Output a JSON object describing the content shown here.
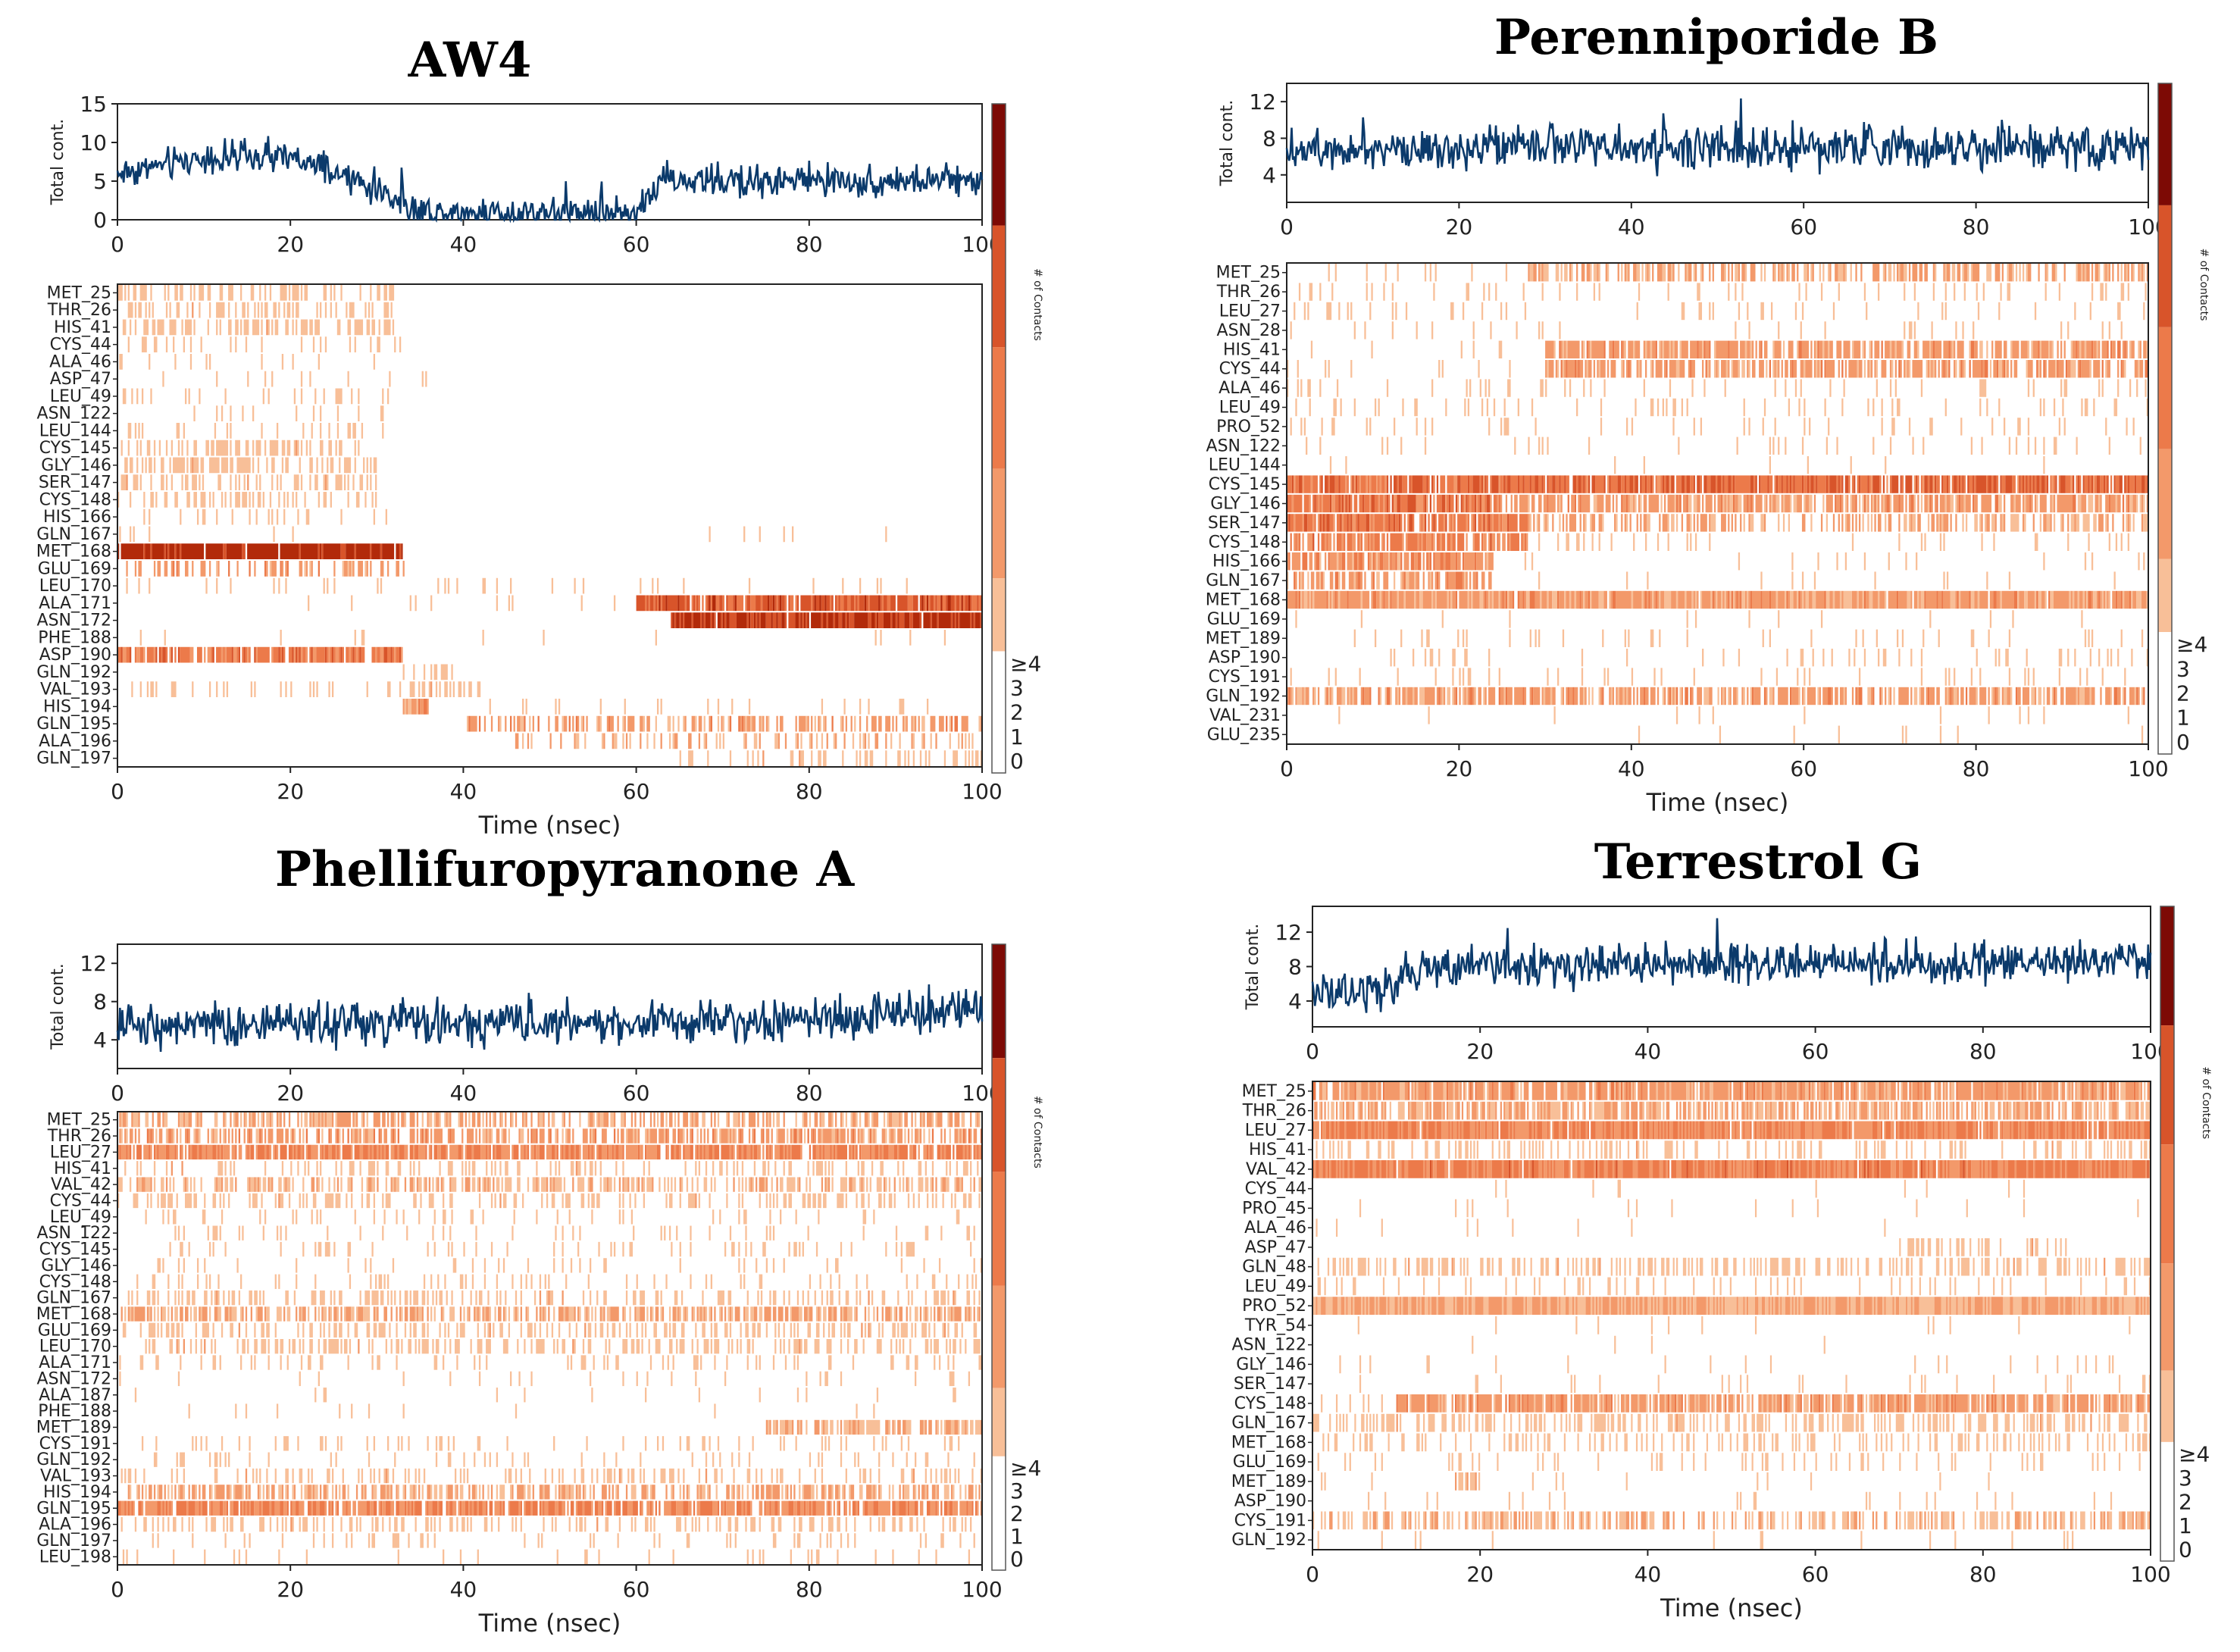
{
  "figure": {
    "time_label": "Time (nsec)",
    "total_label": "Total cont.",
    "colorbar_label": "# of Contacts",
    "colorbar_ticks": [
      "0",
      "1",
      "2",
      "3",
      "≥4"
    ]
  },
  "chart_data": [
    {
      "type": "heatmap",
      "title": "AW4",
      "xlabel": "Time (nsec)",
      "xlim": [
        0,
        100
      ],
      "xticks": [
        "0",
        "20",
        "40",
        "60",
        "80",
        "100"
      ],
      "total_contacts": {
        "ylabel": "Total cont.",
        "yticks": [
          "0",
          "5",
          "10",
          "15"
        ],
        "ylim": [
          0,
          15
        ],
        "segments": [
          [
            0,
            6
          ],
          [
            10,
            8
          ],
          [
            20,
            8
          ],
          [
            30,
            4
          ],
          [
            35,
            1
          ],
          [
            40,
            1
          ],
          [
            50,
            1
          ],
          [
            60,
            1
          ],
          [
            63,
            5
          ],
          [
            70,
            5
          ],
          [
            80,
            5
          ],
          [
            90,
            5
          ],
          [
            100,
            5
          ]
        ],
        "noise": 1.6
      },
      "residues": [
        "MET_25",
        "THR_26",
        "HIS_41",
        "CYS_44",
        "ALA_46",
        "ASP_47",
        "LEU_49",
        "ASN_122",
        "LEU_144",
        "CYS_145",
        "GLY_146",
        "SER_147",
        "CYS_148",
        "HIS_166",
        "GLN_167",
        "MET_168",
        "GLU_169",
        "LEU_170",
        "ALA_171",
        "ASN_172",
        "PHE_188",
        "ASP_190",
        "GLN_192",
        "VAL_193",
        "HIS_194",
        "GLN_195",
        "ALA_196",
        "GLN_197"
      ],
      "bands": [
        [
          [
            0,
            32,
            0.35,
            0.6
          ]
        ],
        [
          [
            0,
            32,
            0.4,
            0.6
          ]
        ],
        [
          [
            0,
            32,
            0.5,
            0.6
          ]
        ],
        [
          [
            0,
            33,
            0.15,
            0.5
          ]
        ],
        [
          [
            0,
            32,
            0.1,
            0.5
          ]
        ],
        [
          [
            0,
            40,
            0.08,
            0.5
          ]
        ],
        [
          [
            0,
            33,
            0.15,
            0.5
          ]
        ],
        [
          [
            0,
            35,
            0.06,
            0.5
          ]
        ],
        [
          [
            0,
            32,
            0.2,
            0.5
          ]
        ],
        [
          [
            0,
            30,
            0.45,
            0.6
          ]
        ],
        [
          [
            0,
            30,
            0.5,
            0.6
          ]
        ],
        [
          [
            0,
            30,
            0.4,
            0.6
          ]
        ],
        [
          [
            0,
            30,
            0.3,
            0.5
          ]
        ],
        [
          [
            0,
            32,
            0.1,
            0.5
          ]
        ],
        [
          [
            0,
            90,
            0.03,
            0.5
          ]
        ],
        [
          [
            0,
            33,
            0.95,
            2.6
          ]
        ],
        [
          [
            0,
            35,
            0.35,
            0.9
          ]
        ],
        [
          [
            0,
            55,
            0.1,
            0.5
          ],
          [
            55,
            100,
            0.04,
            0.5
          ]
        ],
        [
          [
            60,
            100,
            0.95,
            1.7
          ],
          [
            20,
            60,
            0.05,
            0.5
          ]
        ],
        [
          [
            64,
            100,
            0.95,
            2.3
          ]
        ],
        [
          [
            0,
            100,
            0.02,
            0.4
          ]
        ],
        [
          [
            0,
            33,
            0.85,
            1.3
          ]
        ],
        [
          [
            33,
            40,
            0.3,
            0.6
          ]
        ],
        [
          [
            0,
            33,
            0.1,
            0.5
          ],
          [
            33,
            42,
            0.4,
            0.6
          ]
        ],
        [
          [
            33,
            36,
            0.9,
            0.9
          ],
          [
            36,
            100,
            0.08,
            0.5
          ]
        ],
        [
          [
            40,
            100,
            0.5,
            0.9
          ]
        ],
        [
          [
            45,
            100,
            0.3,
            0.7
          ]
        ],
        [
          [
            65,
            100,
            0.3,
            0.6
          ]
        ]
      ]
    },
    {
      "type": "heatmap",
      "title": "Perenniporide B",
      "xlabel": "Time (nsec)",
      "xlim": [
        0,
        100
      ],
      "xticks": [
        "0",
        "20",
        "40",
        "60",
        "80",
        "100"
      ],
      "total_contacts": {
        "ylabel": "Total cont.",
        "yticks": [
          "4",
          "8",
          "12"
        ],
        "ylim": [
          1,
          14
        ],
        "segments": [
          [
            0,
            7
          ],
          [
            100,
            7
          ]
        ],
        "noise": 1.8
      },
      "residues": [
        "MET_25",
        "THR_26",
        "LEU_27",
        "ASN_28",
        "HIS_41",
        "CYS_44",
        "ALA_46",
        "LEU_49",
        "PRO_52",
        "ASN_122",
        "LEU_144",
        "CYS_145",
        "GLY_146",
        "SER_147",
        "CYS_148",
        "HIS_166",
        "GLN_167",
        "MET_168",
        "GLU_169",
        "MET_189",
        "ASP_190",
        "CYS_191",
        "GLN_192",
        "VAL_231",
        "GLU_235"
      ],
      "bands": [
        [
          [
            0,
            28,
            0.05,
            0.5
          ],
          [
            28,
            100,
            0.55,
            0.8
          ]
        ],
        [
          [
            0,
            100,
            0.12,
            0.5
          ]
        ],
        [
          [
            0,
            100,
            0.1,
            0.5
          ]
        ],
        [
          [
            0,
            100,
            0.06,
            0.5
          ]
        ],
        [
          [
            0,
            30,
            0.03,
            0.5
          ],
          [
            30,
            100,
            0.75,
            0.9
          ]
        ],
        [
          [
            0,
            30,
            0.06,
            0.5
          ],
          [
            30,
            100,
            0.7,
            0.9
          ]
        ],
        [
          [
            0,
            100,
            0.12,
            0.5
          ]
        ],
        [
          [
            0,
            100,
            0.12,
            0.5
          ]
        ],
        [
          [
            0,
            100,
            0.08,
            0.5
          ]
        ],
        [
          [
            0,
            100,
            0.06,
            0.5
          ]
        ],
        [
          [
            0,
            100,
            0.03,
            0.5
          ]
        ],
        [
          [
            0,
            25,
            0.9,
            1.4
          ],
          [
            25,
            100,
            0.9,
            1.5
          ]
        ],
        [
          [
            0,
            25,
            0.9,
            1.3
          ],
          [
            25,
            100,
            0.75,
            0.9
          ]
        ],
        [
          [
            0,
            28,
            0.85,
            1.3
          ],
          [
            28,
            100,
            0.5,
            0.8
          ]
        ],
        [
          [
            0,
            28,
            0.8,
            1.2
          ],
          [
            28,
            100,
            0.1,
            0.5
          ]
        ],
        [
          [
            0,
            24,
            0.85,
            1.0
          ],
          [
            24,
            100,
            0.04,
            0.5
          ]
        ],
        [
          [
            0,
            24,
            0.7,
            0.9
          ],
          [
            24,
            100,
            0.03,
            0.5
          ]
        ],
        [
          [
            0,
            100,
            0.98,
            0.9
          ]
        ],
        [
          [
            0,
            100,
            0.02,
            0.4
          ]
        ],
        [
          [
            0,
            100,
            0.08,
            0.5
          ]
        ],
        [
          [
            0,
            100,
            0.12,
            0.5
          ]
        ],
        [
          [
            0,
            100,
            0.1,
            0.5
          ]
        ],
        [
          [
            0,
            100,
            0.75,
            0.9
          ]
        ],
        [
          [
            0,
            100,
            0.03,
            0.5
          ]
        ],
        [
          [
            0,
            100,
            0.02,
            0.5
          ]
        ]
      ]
    },
    {
      "type": "heatmap",
      "title": "Phellifuropyranone A",
      "xlabel": "Time (nsec)",
      "xlim": [
        0,
        100
      ],
      "xticks": [
        "0",
        "20",
        "40",
        "60",
        "80",
        "100"
      ],
      "total_contacts": {
        "ylabel": "Total cont.",
        "yticks": [
          "4",
          "8",
          "12"
        ],
        "ylim": [
          1,
          14
        ],
        "segments": [
          [
            0,
            5.5
          ],
          [
            80,
            6
          ],
          [
            100,
            7.5
          ]
        ],
        "noise": 1.7
      },
      "residues": [
        "MET_25",
        "THR_26",
        "LEU_27",
        "HIS_41",
        "VAL_42",
        "CYS_44",
        "LEU_49",
        "ASN_122",
        "CYS_145",
        "GLY_146",
        "CYS_148",
        "GLN_167",
        "MET_168",
        "GLU_169",
        "LEU_170",
        "ALA_171",
        "ASN_172",
        "ALA_187",
        "PHE_188",
        "MET_189",
        "CYS_191",
        "GLN_192",
        "VAL_193",
        "HIS_194",
        "GLN_195",
        "ALA_196",
        "GLN_197",
        "LEU_198"
      ],
      "bands": [
        [
          [
            0,
            100,
            0.55,
            0.8
          ]
        ],
        [
          [
            0,
            100,
            0.6,
            0.9
          ]
        ],
        [
          [
            0,
            100,
            0.85,
            1.1
          ]
        ],
        [
          [
            0,
            100,
            0.25,
            0.6
          ]
        ],
        [
          [
            0,
            100,
            0.5,
            0.7
          ]
        ],
        [
          [
            0,
            100,
            0.3,
            0.6
          ]
        ],
        [
          [
            0,
            100,
            0.12,
            0.5
          ]
        ],
        [
          [
            0,
            100,
            0.1,
            0.5
          ]
        ],
        [
          [
            0,
            100,
            0.12,
            0.5
          ]
        ],
        [
          [
            0,
            100,
            0.1,
            0.5
          ]
        ],
        [
          [
            0,
            100,
            0.12,
            0.5
          ]
        ],
        [
          [
            0,
            100,
            0.3,
            0.6
          ]
        ],
        [
          [
            0,
            100,
            0.65,
            0.8
          ]
        ],
        [
          [
            0,
            100,
            0.35,
            0.6
          ]
        ],
        [
          [
            0,
            100,
            0.35,
            0.6
          ]
        ],
        [
          [
            0,
            100,
            0.12,
            0.5
          ]
        ],
        [
          [
            0,
            100,
            0.06,
            0.5
          ]
        ],
        [
          [
            0,
            100,
            0.03,
            0.5
          ]
        ],
        [
          [
            0,
            100,
            0.03,
            0.5
          ]
        ],
        [
          [
            75,
            100,
            0.7,
            0.7
          ]
        ],
        [
          [
            0,
            100,
            0.15,
            0.5
          ]
        ],
        [
          [
            0,
            100,
            0.1,
            0.5
          ]
        ],
        [
          [
            0,
            100,
            0.25,
            0.6
          ]
        ],
        [
          [
            0,
            100,
            0.55,
            0.8
          ]
        ],
        [
          [
            0,
            100,
            0.85,
            1.1
          ]
        ],
        [
          [
            0,
            100,
            0.3,
            0.6
          ]
        ],
        [
          [
            0,
            100,
            0.12,
            0.5
          ]
        ],
        [
          [
            0,
            100,
            0.05,
            0.5
          ]
        ]
      ]
    },
    {
      "type": "heatmap",
      "title": "Terrestrol G",
      "xlabel": "Time (nsec)",
      "xlim": [
        0,
        100
      ],
      "xticks": [
        "0",
        "20",
        "40",
        "60",
        "80",
        "100"
      ],
      "total_contacts": {
        "ylabel": "Total cont.",
        "yticks": [
          "4",
          "8",
          "12"
        ],
        "ylim": [
          1,
          15
        ],
        "segments": [
          [
            0,
            5
          ],
          [
            8,
            5
          ],
          [
            12,
            8
          ],
          [
            100,
            8.5
          ]
        ],
        "noise": 1.7
      },
      "residues": [
        "MET_25",
        "THR_26",
        "LEU_27",
        "HIS_41",
        "VAL_42",
        "CYS_44",
        "PRO_45",
        "ALA_46",
        "ASP_47",
        "GLN_48",
        "LEU_49",
        "PRO_52",
        "TYR_54",
        "ASN_122",
        "GLY_146",
        "SER_147",
        "CYS_148",
        "GLN_167",
        "MET_168",
        "GLU_169",
        "MET_189",
        "ASP_190",
        "CYS_191",
        "GLN_192"
      ],
      "bands": [
        [
          [
            0,
            100,
            0.9,
            0.9
          ]
        ],
        [
          [
            0,
            100,
            0.7,
            0.8
          ]
        ],
        [
          [
            0,
            100,
            0.95,
            1.1
          ]
        ],
        [
          [
            0,
            100,
            0.25,
            0.6
          ]
        ],
        [
          [
            0,
            100,
            0.98,
            1.2
          ]
        ],
        [
          [
            0,
            100,
            0.03,
            0.5
          ]
        ],
        [
          [
            0,
            100,
            0.02,
            0.5
          ]
        ],
        [
          [
            0,
            100,
            0.02,
            0.5
          ]
        ],
        [
          [
            70,
            90,
            0.4,
            0.6
          ]
        ],
        [
          [
            0,
            100,
            0.4,
            0.6
          ]
        ],
        [
          [
            0,
            100,
            0.15,
            0.5
          ]
        ],
        [
          [
            0,
            100,
            1.0,
            0.8
          ]
        ],
        [
          [
            0,
            100,
            0.03,
            0.5
          ]
        ],
        [
          [
            0,
            100,
            0.01,
            0.5
          ]
        ],
        [
          [
            0,
            100,
            0.05,
            0.5
          ]
        ],
        [
          [
            0,
            100,
            0.05,
            0.5
          ]
        ],
        [
          [
            10,
            100,
            0.85,
            0.9
          ],
          [
            0,
            10,
            0.2,
            0.5
          ]
        ],
        [
          [
            0,
            100,
            0.4,
            0.6
          ]
        ],
        [
          [
            0,
            100,
            0.25,
            0.5
          ]
        ],
        [
          [
            0,
            100,
            0.12,
            0.5
          ]
        ],
        [
          [
            17,
            20,
            0.9,
            0.7
          ],
          [
            0,
            100,
            0.02,
            0.5
          ]
        ],
        [
          [
            0,
            100,
            0.05,
            0.5
          ]
        ],
        [
          [
            0,
            100,
            0.5,
            0.7
          ]
        ],
        [
          [
            0,
            100,
            0.03,
            0.5
          ]
        ]
      ]
    }
  ]
}
